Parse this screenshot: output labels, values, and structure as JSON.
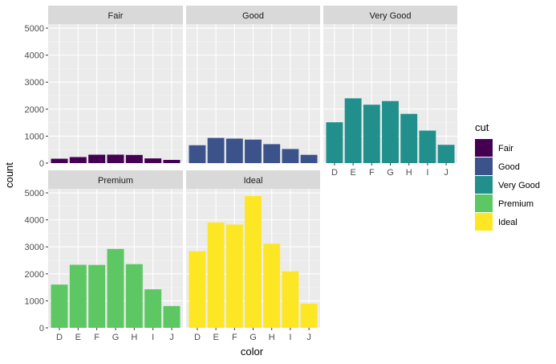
{
  "chart_data": {
    "type": "bar",
    "xlabel": "color",
    "ylabel": "count",
    "categories": [
      "D",
      "E",
      "F",
      "G",
      "H",
      "I",
      "J"
    ],
    "y_ticks": [
      "0",
      "1000",
      "2000",
      "3000",
      "4000",
      "5000"
    ],
    "ylim": [
      0,
      5150
    ],
    "grid": true,
    "legend": {
      "title": "cut",
      "position": "right"
    },
    "colors": {
      "panel_bg": "#ebebeb",
      "grid_major": "#ffffff",
      "strip_bg": "#d9d9d9"
    },
    "panels": [
      {
        "name": "Fair",
        "color": "#440154",
        "values": [
          163,
          224,
          312,
          314,
          303,
          175,
          119
        ]
      },
      {
        "name": "Good",
        "color": "#3b528b",
        "values": [
          662,
          933,
          909,
          871,
          702,
          522,
          307
        ]
      },
      {
        "name": "Very Good",
        "color": "#21908c",
        "values": [
          1513,
          2400,
          2164,
          2299,
          1824,
          1204,
          678
        ]
      },
      {
        "name": "Premium",
        "color": "#5dc863",
        "values": [
          1603,
          2337,
          2331,
          2924,
          2360,
          1428,
          808
        ]
      },
      {
        "name": "Ideal",
        "color": "#fde725",
        "values": [
          2834,
          3903,
          3826,
          4884,
          3115,
          2093,
          896
        ]
      }
    ]
  }
}
